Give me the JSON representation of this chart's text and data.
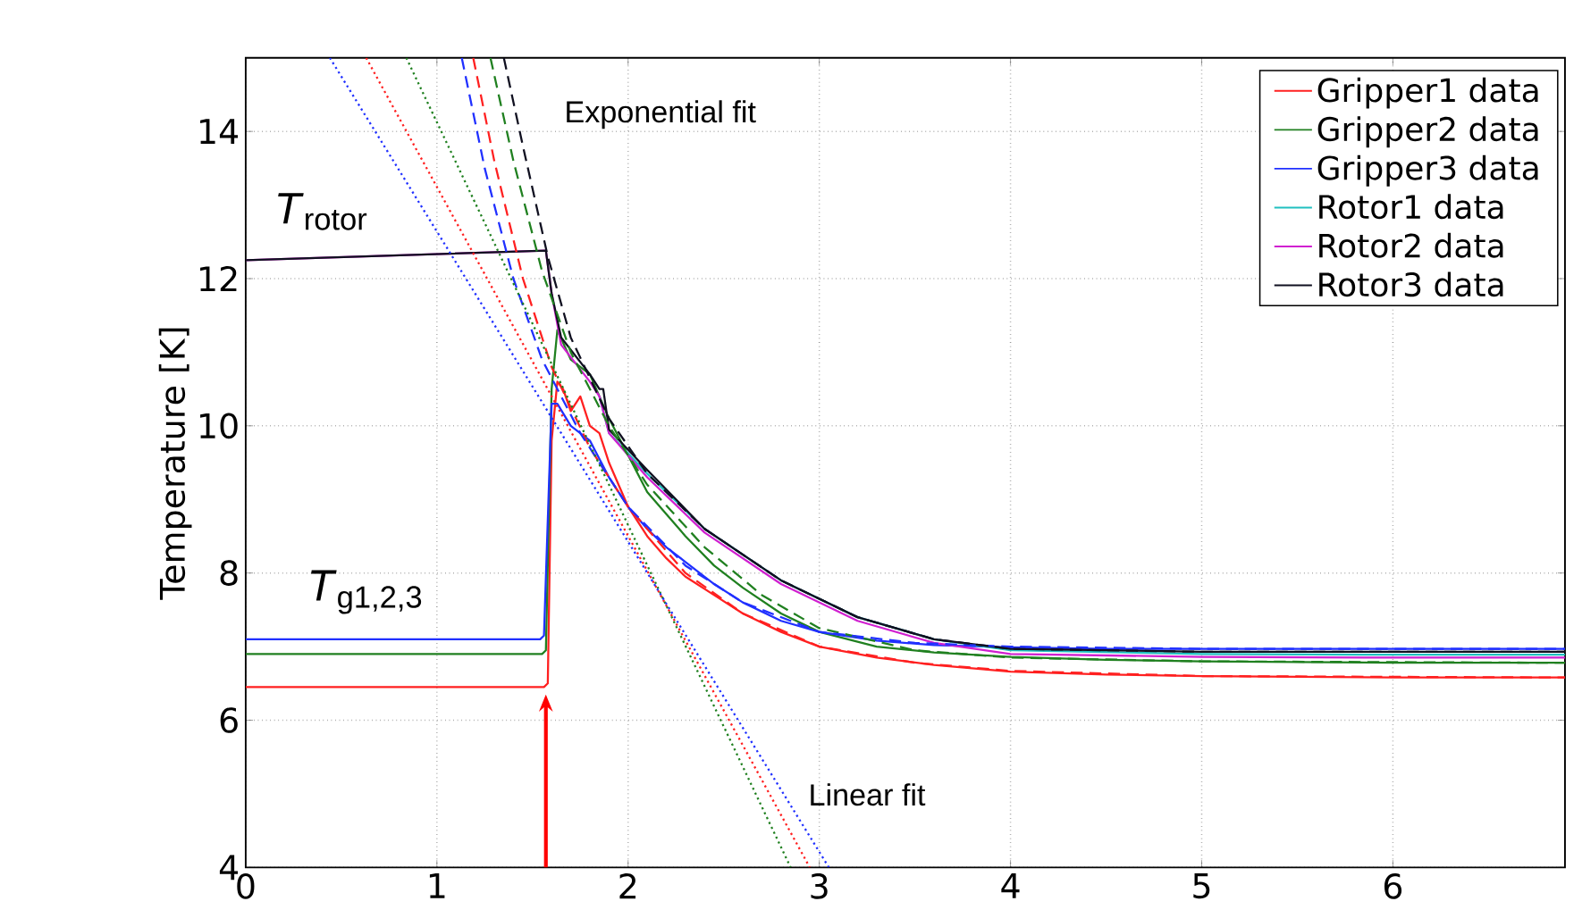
{
  "chart_data": {
    "type": "line",
    "ylabel": "Temperature [K]",
    "xlim": [
      0,
      6.9
    ],
    "ylim": [
      4,
      15
    ],
    "xticks": [
      0,
      1,
      2,
      3,
      4,
      5,
      6
    ],
    "yticks": [
      4,
      6,
      8,
      10,
      12,
      14
    ],
    "grid": true,
    "legend": "top right",
    "series": [
      {
        "name": "Gripper1 data",
        "color": "#ff2020",
        "line_style": "solid",
        "x": [
          0,
          1.56,
          1.58,
          1.6,
          1.63,
          1.66,
          1.7,
          1.75,
          1.8,
          1.85,
          1.9,
          2.0,
          2.1,
          2.2,
          2.3,
          2.45,
          2.6,
          2.8,
          3.0,
          3.3,
          3.6,
          4.0,
          4.5,
          5.0,
          6.0,
          6.9
        ],
        "values": [
          6.45,
          6.45,
          6.5,
          9.8,
          10.6,
          10.5,
          10.2,
          10.4,
          10.0,
          9.9,
          9.5,
          8.9,
          8.5,
          8.2,
          7.95,
          7.7,
          7.45,
          7.2,
          7.0,
          6.85,
          6.75,
          6.66,
          6.62,
          6.6,
          6.58,
          6.58
        ]
      },
      {
        "name": "Gripper2 data",
        "color": "#208020",
        "line_style": "solid",
        "x": [
          0,
          1.55,
          1.57,
          1.6,
          1.63,
          1.7,
          1.8,
          1.9,
          2.0,
          2.1,
          2.2,
          2.3,
          2.45,
          2.6,
          2.8,
          3.0,
          3.3,
          3.6,
          4.0,
          4.5,
          5.0,
          6.0,
          6.9
        ],
        "values": [
          6.9,
          6.9,
          6.95,
          10.5,
          11.3,
          10.9,
          10.7,
          10.1,
          9.6,
          9.1,
          8.8,
          8.5,
          8.1,
          7.8,
          7.45,
          7.2,
          7.0,
          6.92,
          6.86,
          6.82,
          6.8,
          6.78,
          6.78
        ]
      },
      {
        "name": "Gripper3 data",
        "color": "#2030ff",
        "line_style": "solid",
        "x": [
          0,
          1.54,
          1.56,
          1.6,
          1.63,
          1.7,
          1.8,
          1.9,
          2.0,
          2.1,
          2.2,
          2.3,
          2.45,
          2.6,
          2.8,
          3.0,
          3.3,
          3.6,
          4.0,
          4.5,
          5.0,
          6.0,
          6.9
        ],
        "values": [
          7.1,
          7.1,
          7.15,
          10.3,
          10.3,
          10.0,
          9.8,
          9.3,
          8.9,
          8.6,
          8.35,
          8.15,
          7.85,
          7.6,
          7.35,
          7.2,
          7.08,
          7.02,
          6.99,
          6.97,
          6.97,
          6.97,
          6.97
        ]
      },
      {
        "name": "Rotor1 data",
        "color": "#20c0c0",
        "line_style": "solid",
        "x": [
          1.85,
          1.9,
          2.1,
          2.4,
          2.8,
          3.2,
          3.6,
          4.0,
          5.0,
          6.0,
          6.9
        ],
        "values": [
          10.4,
          9.9,
          9.35,
          8.6,
          7.9,
          7.4,
          7.1,
          6.95,
          6.9,
          6.89,
          6.89
        ]
      },
      {
        "name": "Rotor2 data",
        "color": "#d020d0",
        "line_style": "solid",
        "x": [
          0,
          1.57,
          1.6,
          1.65,
          1.8,
          1.85,
          1.9,
          2.1,
          2.4,
          2.8,
          3.2,
          3.6,
          4.0,
          5.0,
          6.0,
          6.9
        ],
        "values": [
          12.25,
          12.38,
          11.8,
          11.1,
          10.6,
          10.4,
          9.9,
          9.3,
          8.55,
          7.85,
          7.35,
          7.05,
          6.9,
          6.86,
          6.85,
          6.85
        ]
      },
      {
        "name": "Rotor3 data",
        "color": "#101020",
        "line_style": "solid",
        "x": [
          0,
          1.57,
          1.6,
          1.65,
          1.8,
          1.85,
          1.87,
          1.9,
          2.1,
          2.4,
          2.8,
          3.2,
          3.6,
          4.0,
          5.0,
          6.0,
          6.9
        ],
        "values": [
          12.25,
          12.38,
          11.8,
          11.2,
          10.7,
          10.5,
          10.5,
          9.95,
          9.4,
          8.6,
          7.9,
          7.4,
          7.1,
          6.97,
          6.93,
          6.93,
          6.93
        ]
      },
      {
        "color": "#ff2020",
        "line_style": "dashed",
        "x": [
          1.19,
          1.3,
          1.45,
          1.6,
          1.8,
          2.0,
          2.3,
          2.6,
          3.0,
          3.5,
          4.0,
          5.0,
          6.9
        ],
        "values": [
          15,
          13.6,
          12.0,
          10.8,
          9.7,
          8.9,
          8.0,
          7.45,
          7.0,
          6.78,
          6.67,
          6.6,
          6.58
        ]
      },
      {
        "color": "#208020",
        "line_style": "dashed",
        "x": [
          1.28,
          1.4,
          1.55,
          1.7,
          1.9,
          2.1,
          2.4,
          2.7,
          3.0,
          3.5,
          4.0,
          5.0,
          6.9
        ],
        "values": [
          15,
          13.6,
          12.1,
          11.0,
          10.0,
          9.2,
          8.35,
          7.7,
          7.25,
          6.95,
          6.85,
          6.8,
          6.78
        ]
      },
      {
        "color": "#2030ff",
        "line_style": "dashed",
        "x": [
          1.13,
          1.25,
          1.4,
          1.55,
          1.75,
          2.0,
          2.3,
          2.6,
          3.0,
          3.5,
          4.0,
          5.0,
          6.9
        ],
        "values": [
          15,
          13.5,
          12.0,
          10.9,
          9.9,
          8.9,
          8.1,
          7.6,
          7.2,
          7.05,
          7.0,
          6.97,
          6.97
        ]
      },
      {
        "color": "#101020",
        "line_style": "dashed",
        "x": [
          1.35,
          1.45,
          1.58,
          1.7,
          1.9,
          2.1,
          2.4,
          2.8,
          3.2,
          3.6,
          4.0,
          5.0,
          6.9
        ],
        "values": [
          15,
          13.8,
          12.3,
          11.2,
          10.1,
          9.35,
          8.6,
          7.9,
          7.4,
          7.1,
          6.97,
          6.93,
          6.93
        ]
      },
      {
        "color": "#ff2020",
        "line_style": "dotted",
        "x": [
          0.63,
          2.95
        ],
        "values": [
          15,
          4
        ]
      },
      {
        "color": "#208020",
        "line_style": "dotted",
        "x": [
          0.84,
          2.85
        ],
        "values": [
          15,
          4
        ]
      },
      {
        "color": "#2030ff",
        "line_style": "dotted",
        "x": [
          0.44,
          3.05
        ],
        "values": [
          15,
          4
        ]
      }
    ],
    "ref_lines": [
      {
        "axis": "x",
        "value": 1.57,
        "color": "#ff0000"
      }
    ],
    "annotations": [
      "Exponential fit",
      "Linear fit",
      "*T*$_{rotor}$",
      "*T*$_{g1,2,3}$"
    ]
  }
}
